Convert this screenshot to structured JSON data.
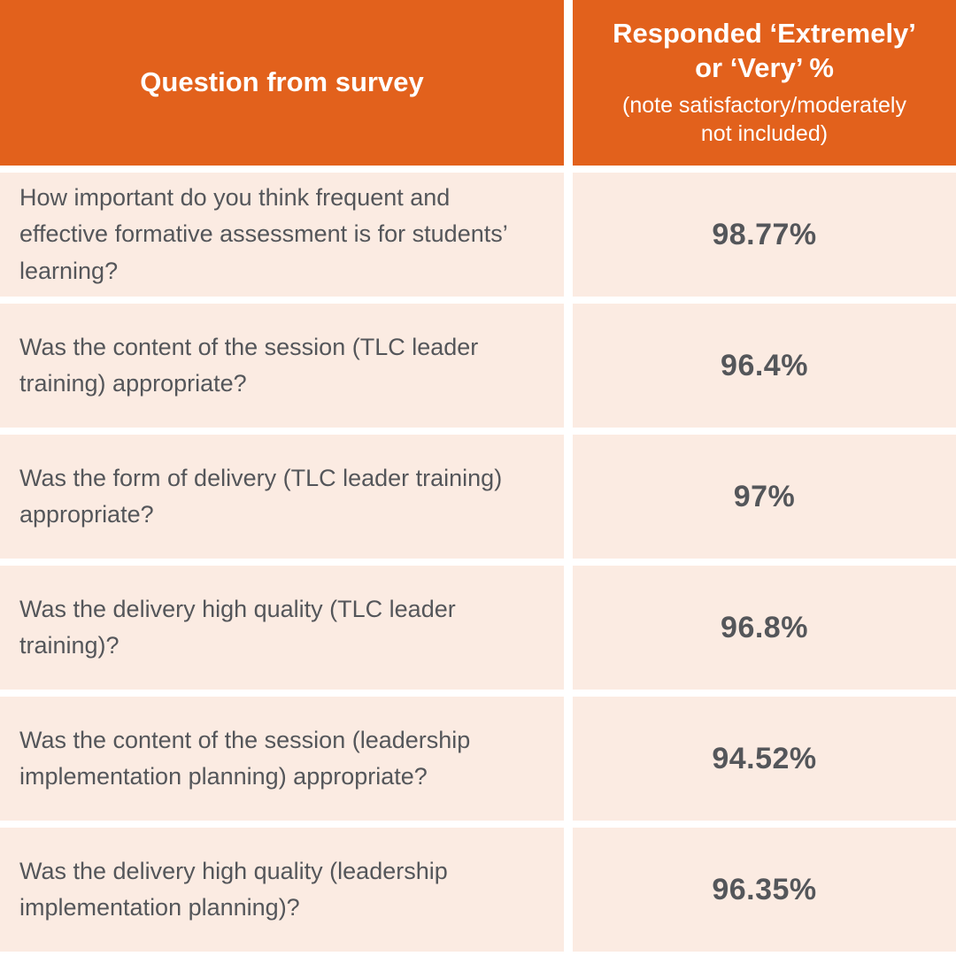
{
  "header": {
    "question_col": "Question from survey",
    "response_col_title": "Responded ‘Extremely’\nor ‘Very’ %",
    "response_col_note": "(note satisfactory/moderately\nnot included)"
  },
  "rows": [
    {
      "question": "How important do you think frequent and effective formative assessment is for students’ learning?",
      "value": "98.77%"
    },
    {
      "question": "Was the content of the session (TLC leader training) appropriate?",
      "value": "96.4%"
    },
    {
      "question": "Was the form of delivery (TLC leader training) appropriate?",
      "value": "97%"
    },
    {
      "question": "Was the delivery high quality (TLC leader training)?",
      "value": "96.8%"
    },
    {
      "question": "Was the content of the session (leadership implementation planning) appropriate?",
      "value": "94.52%"
    },
    {
      "question": "Was the delivery high quality (leadership implementation planning)?",
      "value": "96.35%"
    }
  ],
  "colors": {
    "header_bg": "#E2611C",
    "row_bg": "#FBEBE2",
    "body_text": "#54565A",
    "header_text": "#FFFFFF"
  },
  "chart_data": {
    "type": "table",
    "columns": [
      "Question from survey",
      "Responded ‘Extremely’ or ‘Very’ % (note satisfactory/moderately not included)"
    ],
    "rows": [
      [
        "How important do you think frequent and effective formative assessment is for students’ learning?",
        "98.77%"
      ],
      [
        "Was the content of the session (TLC leader training) appropriate?",
        "96.4%"
      ],
      [
        "Was the form of delivery (TLC leader training) appropriate?",
        "97%"
      ],
      [
        "Was the delivery high quality (TLC leader training)?",
        "96.8%"
      ],
      [
        "Was the content of the session (leadership implementation planning) appropriate?",
        "94.52%"
      ],
      [
        "Was the delivery high quality (leadership implementation planning)?",
        "96.35%"
      ]
    ]
  }
}
